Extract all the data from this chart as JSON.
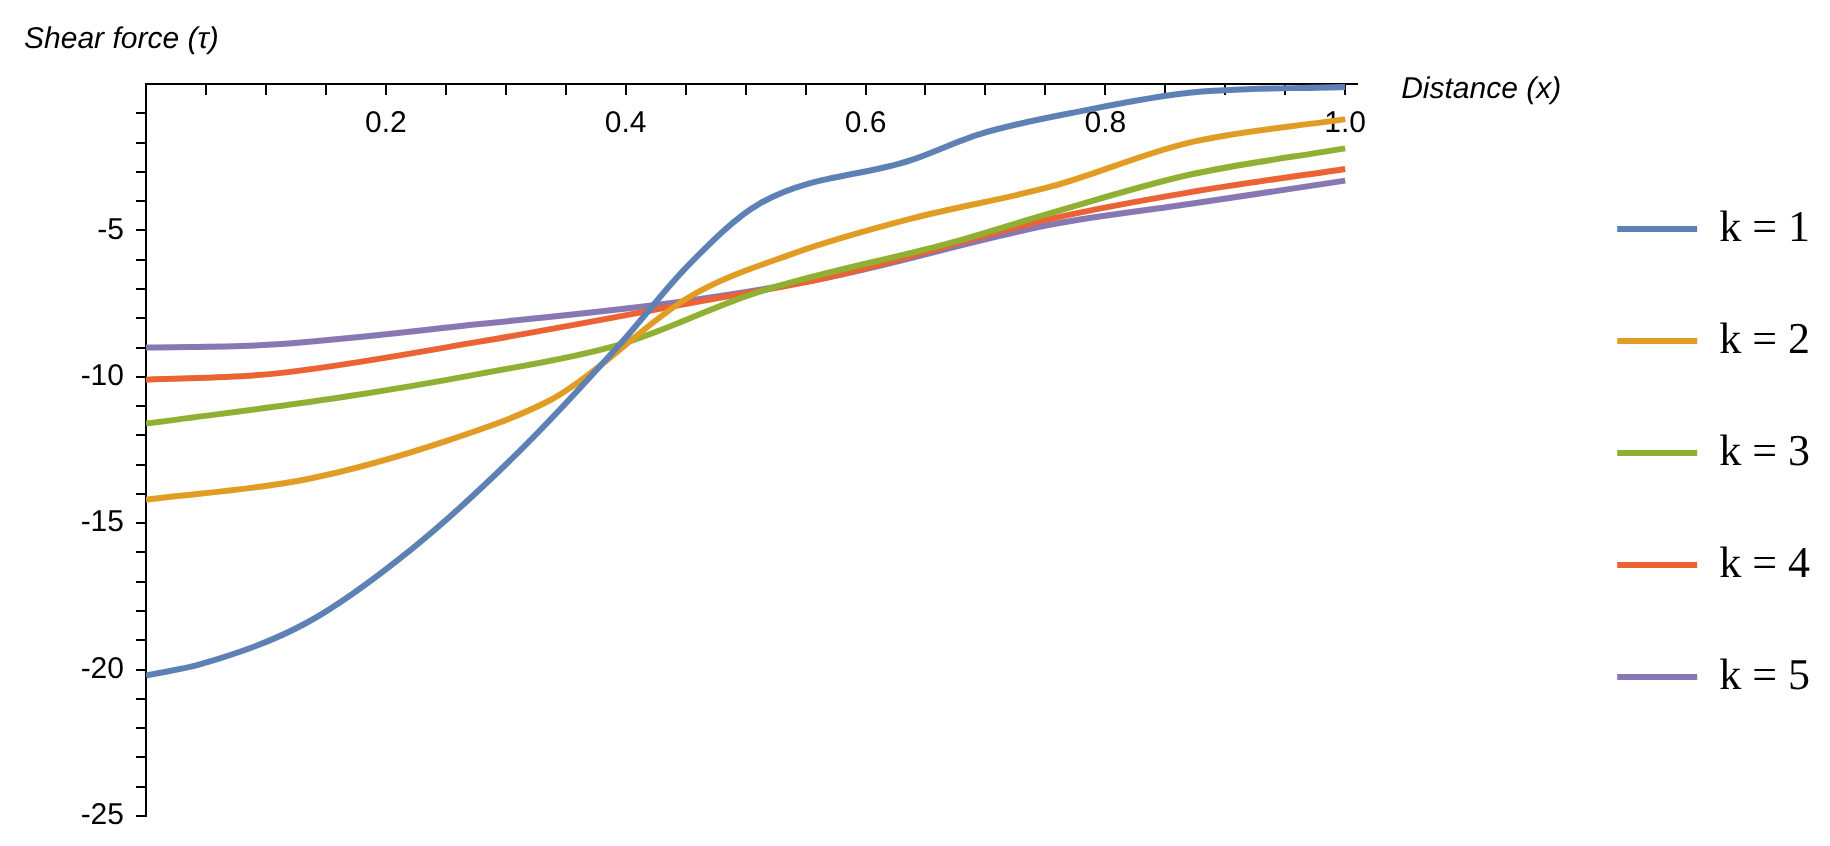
{
  "chart_data": {
    "type": "line",
    "xlabel": "Distance (x)",
    "ylabel": "Shear force (τ)",
    "xlim": [
      0,
      1.01
    ],
    "ylim": [
      -25,
      0
    ],
    "xticks": [
      {
        "value": 0.05,
        "label": null
      },
      {
        "value": 0.1,
        "label": null
      },
      {
        "value": 0.15,
        "label": null
      },
      0.2,
      {
        "value": 0.25,
        "label": null
      },
      {
        "value": 0.3,
        "label": null
      },
      {
        "value": 0.35,
        "label": null
      },
      0.4,
      {
        "value": 0.45,
        "label": null
      },
      {
        "value": 0.5,
        "label": null
      },
      {
        "value": 0.55,
        "label": null
      },
      0.6,
      {
        "value": 0.65,
        "label": null
      },
      {
        "value": 0.7,
        "label": null
      },
      {
        "value": 0.75,
        "label": null
      },
      0.8,
      {
        "value": 0.85,
        "label": null
      },
      {
        "value": 0.9,
        "label": null
      },
      {
        "value": 0.95,
        "label": null
      },
      {
        "value": 1,
        "label": "1.0"
      }
    ],
    "yticks": [
      -25,
      {
        "value": -24,
        "label": null
      },
      {
        "value": -23,
        "label": null
      },
      {
        "value": -22,
        "label": null
      },
      {
        "value": -21,
        "label": null
      },
      -20,
      {
        "value": -19,
        "label": null
      },
      {
        "value": -18,
        "label": null
      },
      {
        "value": -17,
        "label": null
      },
      {
        "value": -16,
        "label": null
      },
      -15,
      {
        "value": -14,
        "label": null
      },
      {
        "value": -13,
        "label": null
      },
      {
        "value": -12,
        "label": null
      },
      {
        "value": -11,
        "label": null
      },
      -10,
      {
        "value": -9,
        "label": null
      },
      {
        "value": -8,
        "label": null
      },
      {
        "value": -7,
        "label": null
      },
      {
        "value": -6,
        "label": null
      },
      -5,
      {
        "value": -4,
        "label": null
      },
      {
        "value": -3,
        "label": null
      },
      {
        "value": -2,
        "label": null
      },
      {
        "value": -1,
        "label": null
      }
    ],
    "grid": false,
    "legend": "right",
    "series": [
      {
        "name": "k = 1",
        "color": "#5e81b5",
        "x": [
          0,
          0.047,
          0.134,
          0.221,
          0.31,
          0.395,
          0.452,
          0.511,
          0.638,
          0.696,
          0.783,
          0.87,
          1
        ],
        "values": [
          -20.2,
          -19.8,
          -18.4,
          -15.9,
          -12.6,
          -8.9,
          -6.2,
          -4.1,
          -2.6,
          -1.7,
          -0.9,
          -0.3,
          -0.1
        ]
      },
      {
        "name": "k = 2",
        "color": "#e19c24",
        "x": [
          0,
          0.134,
          0.25,
          0.337,
          0.36,
          0.452,
          0.539,
          0.638,
          0.755,
          0.87,
          1
        ],
        "values": [
          -14.2,
          -13.5,
          -12.2,
          -10.8,
          -10.2,
          -7.3,
          -5.8,
          -4.6,
          -3.5,
          -2.0,
          -1.2
        ]
      },
      {
        "name": "k = 3",
        "color": "#8fb032",
        "x": [
          0,
          0.163,
          0.278,
          0.395,
          0.511,
          0.673,
          0.755,
          0.87,
          1
        ],
        "values": [
          -11.6,
          -10.7,
          -9.9,
          -8.9,
          -7.1,
          -5.4,
          -4.4,
          -3.1,
          -2.2
        ]
      },
      {
        "name": "k = 4",
        "color": "#eb6235",
        "x": [
          0,
          0.105,
          0.278,
          0.452,
          0.569,
          0.755,
          0.87,
          1
        ],
        "values": [
          -10.1,
          -9.9,
          -8.8,
          -7.5,
          -6.6,
          -4.6,
          -3.7,
          -2.9
        ]
      },
      {
        "name": "k = 5",
        "color": "#8778b3",
        "x": [
          0,
          0.105,
          0.278,
          0.452,
          0.569,
          0.755,
          0.87,
          1
        ],
        "values": [
          -9.0,
          -8.9,
          -8.2,
          -7.4,
          -6.6,
          -4.8,
          -4.1,
          -3.3
        ]
      }
    ]
  }
}
